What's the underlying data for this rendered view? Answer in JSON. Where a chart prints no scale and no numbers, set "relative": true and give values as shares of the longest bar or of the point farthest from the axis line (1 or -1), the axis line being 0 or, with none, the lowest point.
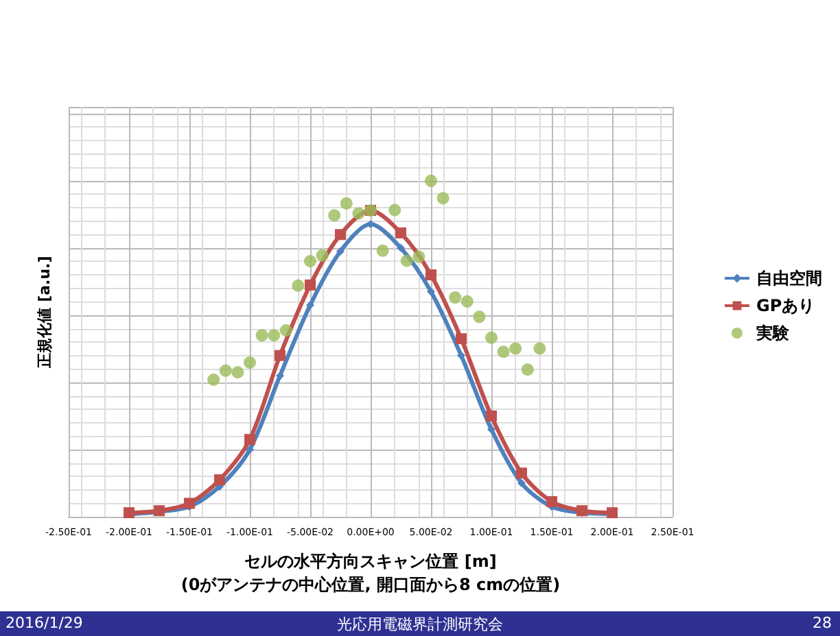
{
  "chart_data": {
    "type": "line",
    "relative": true,
    "xlabel": "セルの水平方向スキャン位置 [m]\n(0がアンテナの中心位置, 開口面から8 cmの位置)",
    "ylabel": "正規化値 [a.u.]",
    "xlim": [
      -0.25,
      0.25
    ],
    "xticks": [
      {
        "value": -0.25,
        "label": "-2.50E-01"
      },
      {
        "value": -0.2,
        "label": "-2.00E-01"
      },
      {
        "value": -0.15,
        "label": "-1.50E-01"
      },
      {
        "value": -0.1,
        "label": "-1.00E-01"
      },
      {
        "value": -0.05,
        "label": "-5.00E-02"
      },
      {
        "value": 0,
        "label": "0.00E+00"
      },
      {
        "value": 0.05,
        "label": "5.00E-02"
      },
      {
        "value": 0.1,
        "label": "1.00E-01"
      },
      {
        "value": 0.15,
        "label": "1.50E-01"
      },
      {
        "value": 0.2,
        "label": "2.00E-01"
      },
      {
        "value": 0.25,
        "label": "2.50E-01"
      }
    ],
    "grid": true,
    "legend": "right",
    "series": [
      {
        "name": "自由空間",
        "color": "#4f81bd",
        "marker": "diamond",
        "x": [
          -0.2,
          -0.175,
          -0.15,
          -0.125,
          -0.1,
          -0.075,
          -0.05,
          -0.025,
          0,
          0.025,
          0.05,
          0.075,
          0.1,
          0.125,
          0.15,
          0.175,
          0.2
        ],
        "values": [
          0.008,
          0.015,
          0.03,
          0.09,
          0.2,
          0.42,
          0.63,
          0.79,
          0.871,
          0.8,
          0.67,
          0.48,
          0.26,
          0.1,
          0.03,
          0.012,
          0.008
        ]
      },
      {
        "name": "GPあり",
        "color": "#c0504d",
        "marker": "square",
        "x": [
          -0.2,
          -0.175,
          -0.15,
          -0.125,
          -0.1,
          -0.075,
          -0.05,
          -0.025,
          0,
          0.025,
          0.05,
          0.075,
          0.1,
          0.125,
          0.15,
          0.175,
          0.2
        ],
        "values": [
          0.012,
          0.018,
          0.04,
          0.11,
          0.23,
          0.48,
          0.69,
          0.84,
          0.912,
          0.845,
          0.72,
          0.53,
          0.3,
          0.13,
          0.045,
          0.018,
          0.012
        ]
      },
      {
        "name": "実験",
        "type": "scatter",
        "color": "#9bbb59",
        "marker": "circle",
        "x": [
          -0.13,
          -0.12,
          -0.11,
          -0.1,
          -0.09,
          -0.08,
          -0.07,
          -0.06,
          -0.05,
          -0.04,
          -0.03,
          -0.02,
          -0.01,
          0,
          0.01,
          0.02,
          0.03,
          0.04,
          0.05,
          0.06,
          0.07,
          0.08,
          0.09,
          0.1,
          0.11,
          0.12,
          0.13,
          0.14
        ],
        "values": [
          0.408,
          0.435,
          0.43,
          0.459,
          0.54,
          0.54,
          0.555,
          0.688,
          0.761,
          0.778,
          0.897,
          0.933,
          0.903,
          0.912,
          0.792,
          0.913,
          0.762,
          0.774,
          1.0,
          0.948,
          0.653,
          0.641,
          0.595,
          0.533,
          0.491,
          0.501,
          0.438,
          0.501
        ]
      }
    ],
    "annotations": [
      "2016/1/29",
      "光応用電磁界計測研究会",
      "28"
    ]
  }
}
